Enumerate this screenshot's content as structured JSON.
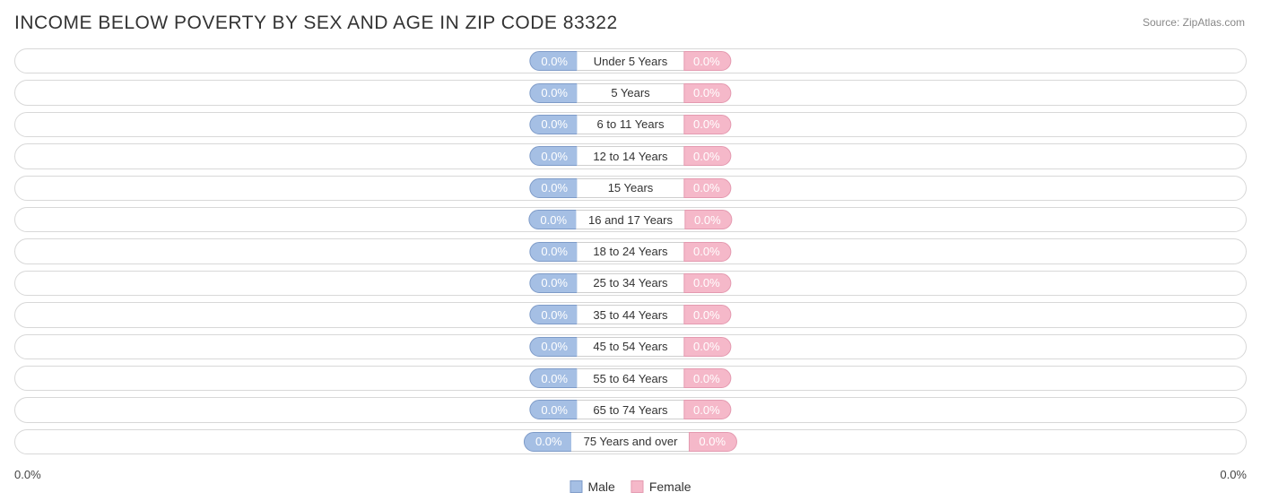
{
  "title": "INCOME BELOW POVERTY BY SEX AND AGE IN ZIP CODE 83322",
  "source": "Source: ZipAtlas.com",
  "chart": {
    "type": "diverging-bar",
    "background_color": "#ffffff",
    "track_border_color": "#d8d8d8",
    "male_color": "#a5bfe4",
    "male_border_color": "#7e9bc8",
    "female_color": "#f5b8c9",
    "female_border_color": "#e49ab0",
    "value_text_color": "#ffffff",
    "age_label_color": "#333333",
    "value_fontsize": 13,
    "age_fontsize": 13,
    "title_fontsize": 21,
    "rows": [
      {
        "age": "Under 5 Years",
        "male": "0.0%",
        "female": "0.0%"
      },
      {
        "age": "5 Years",
        "male": "0.0%",
        "female": "0.0%"
      },
      {
        "age": "6 to 11 Years",
        "male": "0.0%",
        "female": "0.0%"
      },
      {
        "age": "12 to 14 Years",
        "male": "0.0%",
        "female": "0.0%"
      },
      {
        "age": "15 Years",
        "male": "0.0%",
        "female": "0.0%"
      },
      {
        "age": "16 and 17 Years",
        "male": "0.0%",
        "female": "0.0%"
      },
      {
        "age": "18 to 24 Years",
        "male": "0.0%",
        "female": "0.0%"
      },
      {
        "age": "25 to 34 Years",
        "male": "0.0%",
        "female": "0.0%"
      },
      {
        "age": "35 to 44 Years",
        "male": "0.0%",
        "female": "0.0%"
      },
      {
        "age": "45 to 54 Years",
        "male": "0.0%",
        "female": "0.0%"
      },
      {
        "age": "55 to 64 Years",
        "male": "0.0%",
        "female": "0.0%"
      },
      {
        "age": "65 to 74 Years",
        "male": "0.0%",
        "female": "0.0%"
      },
      {
        "age": "75 Years and over",
        "male": "0.0%",
        "female": "0.0%"
      }
    ]
  },
  "axis": {
    "left_label": "0.0%",
    "right_label": "0.0%"
  },
  "legend": {
    "male": "Male",
    "female": "Female"
  }
}
